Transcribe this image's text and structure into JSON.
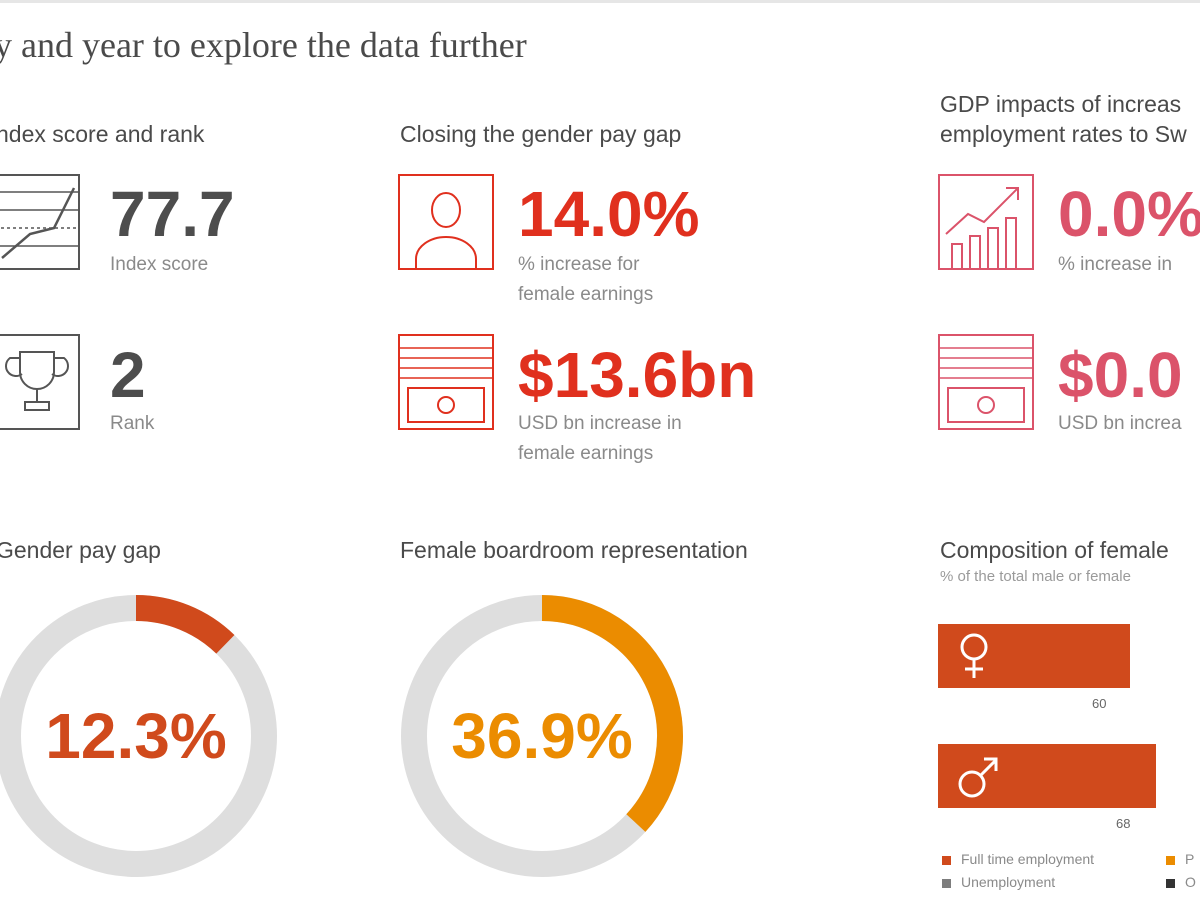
{
  "page": {
    "heading": "y and year to explore the data further"
  },
  "index": {
    "title": "ndex score and rank",
    "score_value": "77.7",
    "score_caption": "Index score",
    "rank_value": "2",
    "rank_caption": "Rank"
  },
  "pay_gap_closing": {
    "title": "Closing the gender pay gap",
    "earnings_pct_value": "14.0%",
    "earnings_pct_caption_1": "% increase for",
    "earnings_pct_caption_2": "female earnings",
    "earnings_usd_value": "$13.6bn",
    "earnings_usd_caption_1": "USD bn increase in",
    "earnings_usd_caption_2": "female earnings"
  },
  "gdp": {
    "title_1": "GDP impacts of increas",
    "title_2": "employment rates to Sw",
    "pct_value": "0.0%",
    "pct_caption": "% increase in",
    "usd_value": "$0.0",
    "usd_caption": "USD bn increa"
  },
  "colors": {
    "red": "#e0301e",
    "pink": "#db536a",
    "orange_bar": "#d04a1c",
    "gap_ring": "#d04a1c",
    "board_ring": "#eb8c00",
    "track": "#dedede"
  },
  "chart_data": [
    {
      "type": "pie",
      "title": "Gender pay gap",
      "center_label": "12.3%",
      "values": [
        12.3,
        87.7
      ]
    },
    {
      "type": "pie",
      "title": "Female boardroom representation",
      "center_label": "36.9%",
      "values": [
        36.9,
        63.1
      ]
    },
    {
      "type": "bar",
      "title": "Composition of female",
      "subtitle": "% of the total male or female",
      "categories": [
        "female-icon",
        "male-icon"
      ],
      "series": [
        {
          "name": "Full time employment",
          "values": [
            60,
            68
          ]
        }
      ],
      "data_labels": [
        "60",
        "68"
      ],
      "legend": [
        "Full time employment",
        "P",
        "Unemployment",
        "O"
      ],
      "legend_colors": [
        "#d04a1c",
        "#eb8c00",
        "#7d7d7d",
        "#333333"
      ]
    }
  ]
}
